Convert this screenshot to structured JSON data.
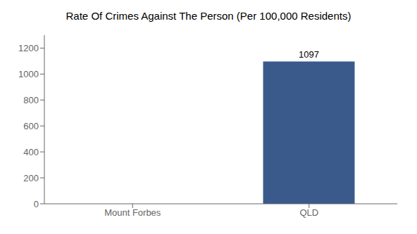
{
  "chart_data": {
    "type": "bar",
    "title": "Rate Of Crimes Against The Person (Per 100,000 Residents)",
    "categories": [
      "Mount Forbes",
      "QLD"
    ],
    "values": [
      0,
      1097
    ],
    "color": "#3a5a8c",
    "ylim": [
      0,
      1300
    ],
    "yticks": [
      0,
      200,
      400,
      600,
      800,
      1000,
      1200
    ],
    "grid": false,
    "data_labels": true
  }
}
